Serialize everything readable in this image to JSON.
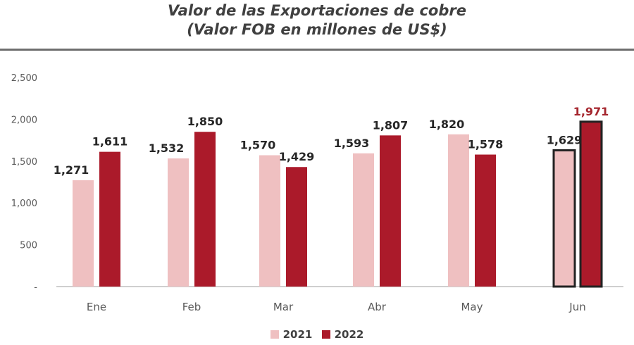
{
  "title": "Valor de las Exportaciones de cobre",
  "subtitle": "(Valor FOB en millones de US$)",
  "colors": {
    "s2021": "#efc0c1",
    "s2022": "#ab1a2a",
    "highlight_label": "#a5262e",
    "highlight_border": "#222222",
    "axis": "#bfbfbf",
    "text": "#595959",
    "value_text": "#262626"
  },
  "chart_data": {
    "type": "bar",
    "title": "Valor de las Exportaciones de cobre",
    "subtitle": "(Valor FOB en millones de US$)",
    "categories": [
      "Ene",
      "Feb",
      "Mar",
      "Abr",
      "May",
      "Jun"
    ],
    "series": [
      {
        "name": "2021",
        "values": [
          1271,
          1532,
          1570,
          1593,
          1820,
          1629
        ],
        "labels": [
          "1,271",
          "1,532",
          "1,570",
          "1,593",
          "1,820",
          "1,629"
        ]
      },
      {
        "name": "2022",
        "values": [
          1611,
          1850,
          1429,
          1807,
          1578,
          1971
        ],
        "labels": [
          "1,611",
          "1,850",
          "1,429",
          "1,807",
          "1,578",
          "1,971"
        ]
      }
    ],
    "yticks": [
      "-",
      "500",
      "1,000",
      "1,500",
      "2,000",
      "2,500"
    ],
    "ylim": [
      0,
      2500
    ],
    "grid": false,
    "legend_position": "bottom",
    "highlight_category": "Jun"
  }
}
